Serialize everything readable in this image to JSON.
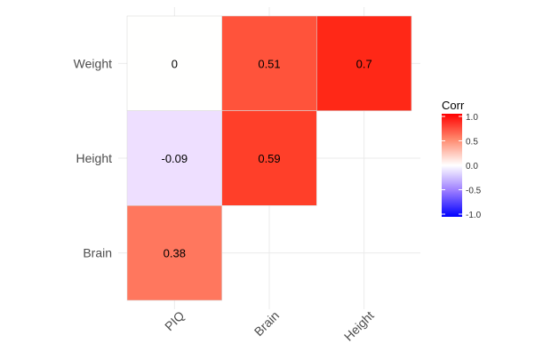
{
  "chart_data": {
    "type": "heatmap",
    "x_categories": [
      "PIQ",
      "Brain",
      "Height"
    ],
    "y_categories": [
      "Brain",
      "Height",
      "Weight"
    ],
    "cells": [
      {
        "x": "PIQ",
        "y": "Weight",
        "value": 0,
        "label": "0"
      },
      {
        "x": "Brain",
        "y": "Weight",
        "value": 0.51,
        "label": "0.51"
      },
      {
        "x": "Height",
        "y": "Weight",
        "value": 0.7,
        "label": "0.7"
      },
      {
        "x": "PIQ",
        "y": "Height",
        "value": -0.09,
        "label": "-0.09"
      },
      {
        "x": "Brain",
        "y": "Height",
        "value": 0.59,
        "label": "0.59"
      },
      {
        "x": "PIQ",
        "y": "Brain",
        "value": 0.38,
        "label": "0.38"
      }
    ],
    "legend": {
      "title": "Corr",
      "ticks": [
        {
          "value": 1.0,
          "label": "1.0"
        },
        {
          "value": 0.5,
          "label": "0.5"
        },
        {
          "value": 0.0,
          "label": "0.0"
        },
        {
          "value": -0.5,
          "label": "-0.5"
        },
        {
          "value": -1.0,
          "label": "-1.0"
        }
      ],
      "range": [
        -1,
        1
      ],
      "placement": "right"
    },
    "colors": {
      "low": "#0000ff",
      "mid": "#ffffff",
      "high": "#ff0000",
      "grid": "#ebebeb",
      "na_fill": "#fffffe"
    },
    "grid": true
  }
}
